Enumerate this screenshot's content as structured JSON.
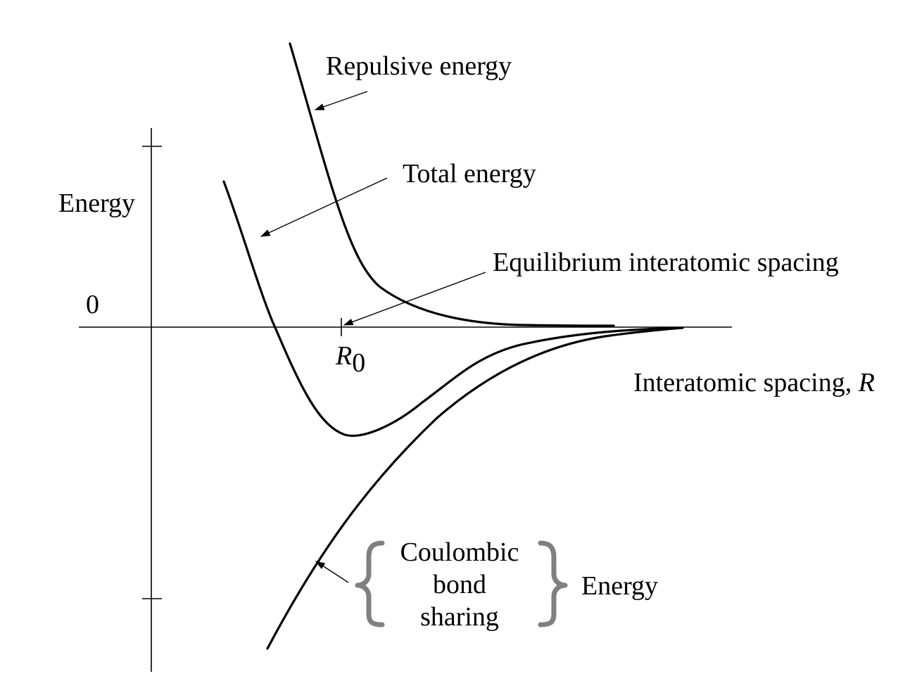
{
  "labels": {
    "repulsive": "Repulsive energy",
    "total": "Total energy",
    "equilibrium": "Equilibrium interatomic spacing",
    "y_axis": "Energy",
    "zero": "0",
    "r0_symbol": "R",
    "r0_subscript": "0",
    "x_axis_prefix": "Interatomic spacing, ",
    "x_axis_var": "R",
    "bond_line1": "Coulombic",
    "bond_line2": "bond",
    "bond_line3": "sharing",
    "bond_energy": "Energy"
  },
  "colors": {
    "curve": "#000000",
    "brace": "#808080"
  }
}
